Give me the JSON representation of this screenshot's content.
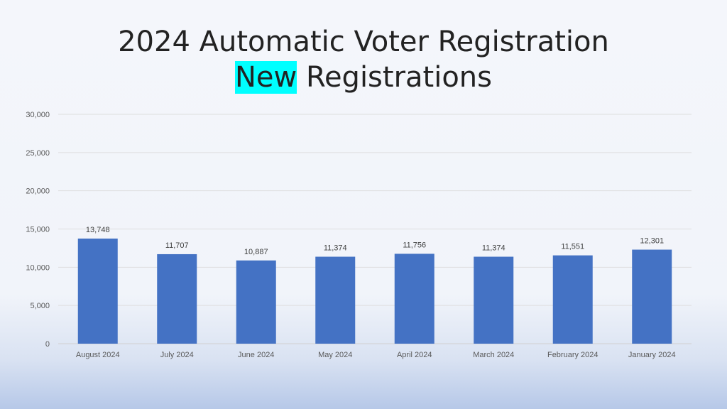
{
  "title": {
    "line1": "2024 Automatic Voter Registration",
    "line2_highlight": "New",
    "line2_rest": " Registrations"
  },
  "chart_data": {
    "type": "bar",
    "title": "2024 Automatic Voter Registration New Registrations",
    "categories": [
      "August 2024",
      "July 2024",
      "June 2024",
      "May 2024",
      "April 2024",
      "March 2024",
      "February 2024",
      "January 2024"
    ],
    "values": [
      13748,
      11707,
      10887,
      11374,
      11756,
      11374,
      11551,
      12301
    ],
    "value_labels": [
      "13,748",
      "11,707",
      "10,887",
      "11,374",
      "11,756",
      "11,374",
      "11,551",
      "12,301"
    ],
    "yticks": [
      0,
      5000,
      10000,
      15000,
      20000,
      25000,
      30000
    ],
    "ytick_labels": [
      "0",
      "5,000",
      "10,000",
      "15,000",
      "20,000",
      "25,000",
      "30,000"
    ],
    "ylim": [
      0,
      30000
    ],
    "xlabel": "",
    "ylabel": "",
    "grid": true,
    "legend": "none",
    "bar_color": "#4472c4",
    "highlight_color": "#00ffff"
  }
}
